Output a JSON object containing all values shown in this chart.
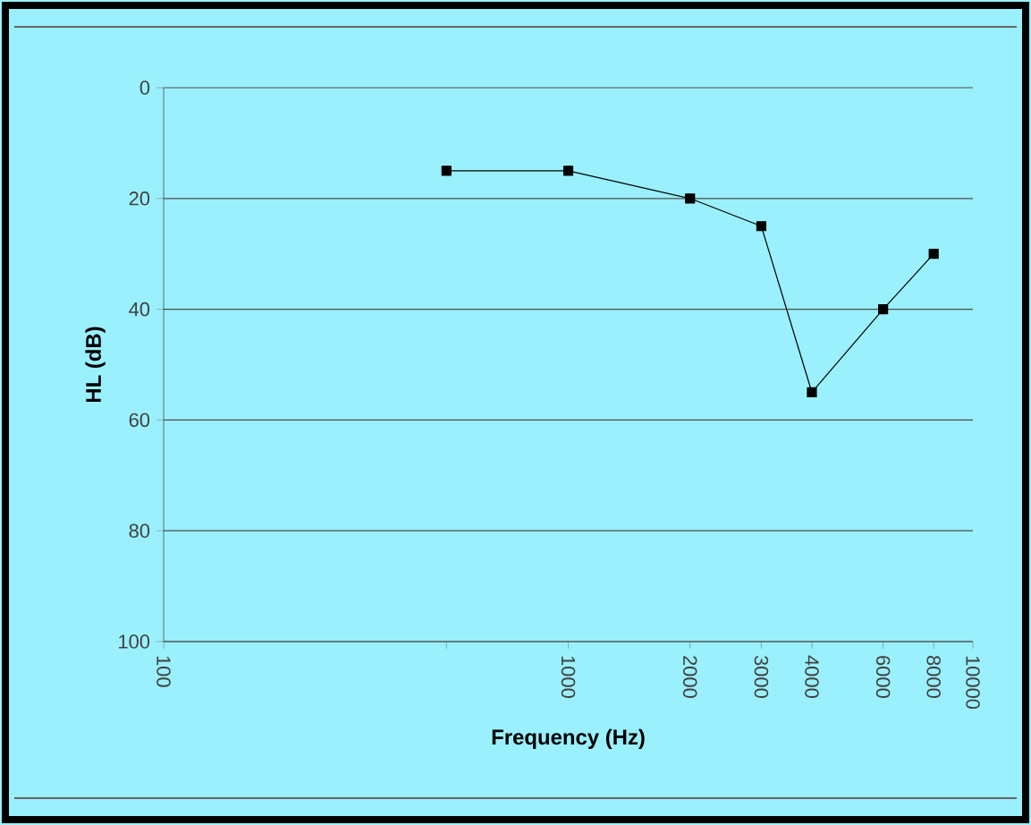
{
  "chart_data": {
    "type": "line",
    "xlabel": "Frequency (Hz)",
    "ylabel": "HL (dB)",
    "x": [
      500,
      1000,
      2000,
      3000,
      4000,
      6000,
      8000
    ],
    "values": [
      15,
      15,
      20,
      25,
      55,
      40,
      30
    ],
    "color": "#000000",
    "marker": "square",
    "line_style": "solid",
    "log": "x",
    "grid": "y",
    "xlim": [
      100,
      10000
    ],
    "ylim": [
      100,
      0
    ],
    "xticks": [
      100,
      {
        "value": 500,
        "label": null
      },
      1000,
      2000,
      3000,
      4000,
      6000,
      8000,
      10000
    ],
    "yticks": [
      0,
      20,
      40,
      60,
      80,
      100
    ]
  }
}
